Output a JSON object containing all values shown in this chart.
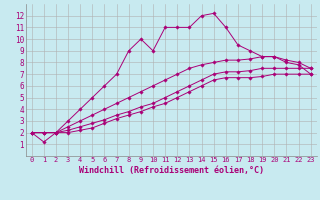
{
  "xlabel": "Windchill (Refroidissement éolien,°C)",
  "background_color": "#c8eaf0",
  "grid_color": "#b0b0b0",
  "line_color": "#aa0077",
  "xlim": [
    -0.5,
    23.5
  ],
  "ylim": [
    0,
    13
  ],
  "xticks": [
    0,
    1,
    2,
    3,
    4,
    5,
    6,
    7,
    8,
    9,
    10,
    11,
    12,
    13,
    14,
    15,
    16,
    17,
    18,
    19,
    20,
    21,
    22,
    23
  ],
  "yticks": [
    1,
    2,
    3,
    4,
    5,
    6,
    7,
    8,
    9,
    10,
    11,
    12
  ],
  "lines": [
    {
      "x": [
        0,
        1,
        2,
        3,
        4,
        5,
        6,
        7,
        8,
        9,
        10,
        11,
        12,
        13,
        14,
        15,
        16,
        17,
        18,
        19,
        20,
        21,
        22,
        23
      ],
      "y": [
        2,
        2,
        2,
        3,
        4,
        5,
        6,
        7,
        9,
        10,
        9,
        11,
        11,
        11,
        12,
        12.2,
        11,
        9.5,
        9,
        8.5,
        8.5,
        8,
        7.8,
        7
      ]
    },
    {
      "x": [
        0,
        1,
        2,
        3,
        4,
        5,
        6,
        7,
        8,
        9,
        10,
        11,
        12,
        13,
        14,
        15,
        16,
        17,
        18,
        19,
        20,
        21,
        22,
        23
      ],
      "y": [
        2,
        2,
        2,
        2.5,
        3,
        3.5,
        4,
        4.5,
        5,
        5.5,
        6,
        6.5,
        7,
        7.5,
        7.8,
        8,
        8.2,
        8.2,
        8.3,
        8.5,
        8.5,
        8.2,
        8.0,
        7.5
      ]
    },
    {
      "x": [
        0,
        1,
        2,
        3,
        4,
        5,
        6,
        7,
        8,
        9,
        10,
        11,
        12,
        13,
        14,
        15,
        16,
        17,
        18,
        19,
        20,
        21,
        22,
        23
      ],
      "y": [
        2,
        2,
        2,
        2.2,
        2.5,
        2.8,
        3.1,
        3.5,
        3.8,
        4.2,
        4.5,
        5,
        5.5,
        6,
        6.5,
        7,
        7.2,
        7.2,
        7.3,
        7.5,
        7.5,
        7.5,
        7.5,
        7.5
      ]
    },
    {
      "x": [
        0,
        1,
        2,
        3,
        4,
        5,
        6,
        7,
        8,
        9,
        10,
        11,
        12,
        13,
        14,
        15,
        16,
        17,
        18,
        19,
        20,
        21,
        22,
        23
      ],
      "y": [
        2,
        1.2,
        2,
        2,
        2.2,
        2.4,
        2.8,
        3.2,
        3.5,
        3.8,
        4.2,
        4.5,
        5,
        5.5,
        6,
        6.5,
        6.7,
        6.7,
        6.7,
        6.8,
        7.0,
        7.0,
        7.0,
        7.0
      ]
    }
  ],
  "xtick_fontsize": 5.0,
  "ytick_fontsize": 5.5,
  "xlabel_fontsize": 6.0
}
